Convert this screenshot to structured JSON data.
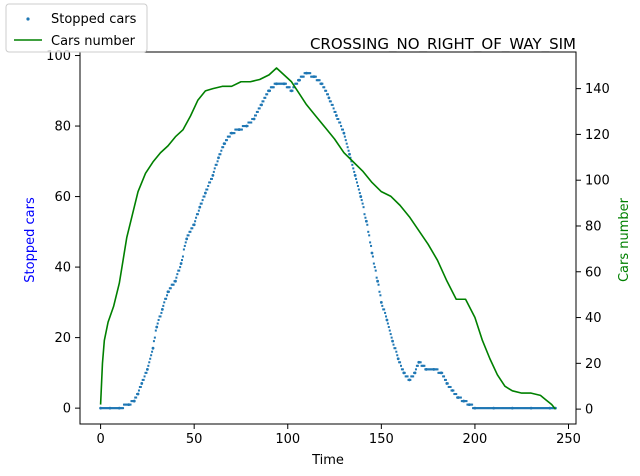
{
  "chart_data": {
    "type": "scatter",
    "title": "CROSSING_NO_RIGHT_OF_WAY_SIM",
    "xlabel": "Time",
    "ylabel_left": "Stopped cars",
    "ylabel_right": "Cars number",
    "xlim": [
      -11,
      254
    ],
    "ylim_left": [
      -4.5,
      101
    ],
    "ylim_right": [
      -6.5,
      156
    ],
    "xticks": [
      0,
      50,
      100,
      150,
      200,
      250
    ],
    "yticks_left": [
      0,
      20,
      40,
      60,
      80,
      100
    ],
    "yticks_right": [
      0,
      20,
      40,
      60,
      80,
      100,
      120,
      140
    ],
    "grid": false,
    "legend_placement": "top-left outside",
    "series": [
      {
        "name": "Stopped cars",
        "type": "scatter",
        "axis": "left",
        "color": "#1f77b4",
        "points": [
          [
            0,
            0
          ],
          [
            5,
            0
          ],
          [
            10,
            0
          ],
          [
            15,
            1
          ],
          [
            18,
            2
          ],
          [
            20,
            4
          ],
          [
            22,
            7
          ],
          [
            25,
            11
          ],
          [
            28,
            17
          ],
          [
            30,
            23
          ],
          [
            33,
            28
          ],
          [
            36,
            33
          ],
          [
            40,
            36
          ],
          [
            43,
            41
          ],
          [
            46,
            48
          ],
          [
            50,
            52
          ],
          [
            53,
            57
          ],
          [
            56,
            61
          ],
          [
            60,
            66
          ],
          [
            63,
            71
          ],
          [
            66,
            75
          ],
          [
            70,
            78
          ],
          [
            74,
            79
          ],
          [
            78,
            80
          ],
          [
            82,
            82
          ],
          [
            86,
            86
          ],
          [
            90,
            90
          ],
          [
            94,
            92
          ],
          [
            98,
            92
          ],
          [
            102,
            90
          ],
          [
            106,
            93
          ],
          [
            110,
            95
          ],
          [
            114,
            94
          ],
          [
            118,
            92
          ],
          [
            122,
            88
          ],
          [
            126,
            83
          ],
          [
            130,
            78
          ],
          [
            133,
            72
          ],
          [
            136,
            66
          ],
          [
            139,
            60
          ],
          [
            142,
            53
          ],
          [
            145,
            44
          ],
          [
            148,
            36
          ],
          [
            150,
            30
          ],
          [
            153,
            25
          ],
          [
            156,
            19
          ],
          [
            159,
            14
          ],
          [
            162,
            10
          ],
          [
            165,
            8
          ],
          [
            168,
            10
          ],
          [
            170,
            13
          ],
          [
            174,
            11
          ],
          [
            178,
            11
          ],
          [
            182,
            10
          ],
          [
            185,
            7
          ],
          [
            188,
            5
          ],
          [
            191,
            3
          ],
          [
            194,
            2
          ],
          [
            197,
            1
          ],
          [
            200,
            0
          ],
          [
            210,
            0
          ],
          [
            220,
            0
          ],
          [
            230,
            0
          ],
          [
            240,
            0
          ],
          [
            243,
            0
          ]
        ]
      },
      {
        "name": "Cars number",
        "type": "line",
        "axis": "right",
        "color": "#008000",
        "points": [
          [
            0,
            2
          ],
          [
            1,
            20
          ],
          [
            2,
            30
          ],
          [
            4,
            38
          ],
          [
            7,
            45
          ],
          [
            10,
            55
          ],
          [
            12,
            65
          ],
          [
            14,
            75
          ],
          [
            17,
            85
          ],
          [
            20,
            95
          ],
          [
            24,
            103
          ],
          [
            28,
            108
          ],
          [
            32,
            112
          ],
          [
            36,
            115
          ],
          [
            40,
            119
          ],
          [
            44,
            122
          ],
          [
            48,
            128
          ],
          [
            52,
            135
          ],
          [
            56,
            139
          ],
          [
            60,
            140
          ],
          [
            65,
            141
          ],
          [
            70,
            141
          ],
          [
            75,
            143
          ],
          [
            80,
            143
          ],
          [
            85,
            144
          ],
          [
            90,
            146
          ],
          [
            94,
            149
          ],
          [
            98,
            146
          ],
          [
            102,
            143
          ],
          [
            106,
            138
          ],
          [
            110,
            133
          ],
          [
            115,
            128
          ],
          [
            120,
            123
          ],
          [
            125,
            118
          ],
          [
            130,
            112
          ],
          [
            135,
            108
          ],
          [
            140,
            104
          ],
          [
            145,
            99
          ],
          [
            150,
            95
          ],
          [
            155,
            93
          ],
          [
            160,
            89
          ],
          [
            165,
            84
          ],
          [
            170,
            78
          ],
          [
            175,
            72
          ],
          [
            180,
            65
          ],
          [
            185,
            56
          ],
          [
            190,
            48
          ],
          [
            195,
            48
          ],
          [
            200,
            40
          ],
          [
            204,
            30
          ],
          [
            208,
            22
          ],
          [
            212,
            15
          ],
          [
            216,
            10
          ],
          [
            220,
            8
          ],
          [
            225,
            7
          ],
          [
            230,
            7
          ],
          [
            235,
            6
          ],
          [
            238,
            4
          ],
          [
            241,
            2
          ],
          [
            243,
            0
          ]
        ]
      }
    ]
  }
}
